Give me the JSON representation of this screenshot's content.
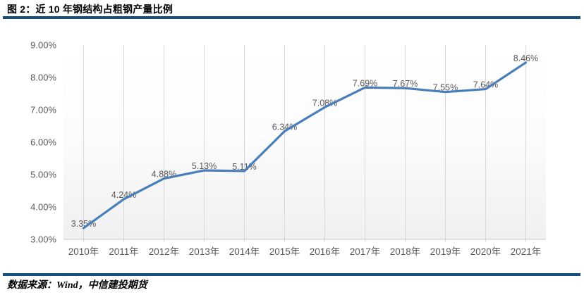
{
  "header": {
    "title": "图 2：近 10 年钢结构占粗钢产量比例"
  },
  "footer": {
    "source": "数据来源：Wind，中信建投期货"
  },
  "colors": {
    "divider": "#174E7C",
    "line_accent": "#4A7EBB",
    "axis_text": "#595959",
    "gridline": "#D9D9D9",
    "axis_line": "#C8C8C8",
    "plot_bg_top": "#FFFFFF",
    "plot_bg_bottom": "#F0F0F0"
  },
  "chart_data": {
    "type": "line",
    "title": "近10年钢结构占粗钢产量比例",
    "categories": [
      "2010年",
      "2011年",
      "2012年",
      "2013年",
      "2014年",
      "2015年",
      "2016年",
      "2017年",
      "2018年",
      "2019年",
      "2020年",
      "2021年"
    ],
    "values": [
      3.35,
      4.24,
      4.88,
      5.13,
      5.11,
      6.34,
      7.08,
      7.69,
      7.67,
      7.55,
      7.64,
      8.46
    ],
    "point_labels": [
      "3.35%",
      "4.24%",
      "4.88%",
      "5.13%",
      "5.11%",
      "6.34%",
      "7.08%",
      "7.69%",
      "7.67%",
      "7.55%",
      "7.64%",
      "8.46%"
    ],
    "yticks": [
      {
        "value": 9,
        "label": "9.00%"
      },
      {
        "value": 8,
        "label": "8.00%"
      },
      {
        "value": 7,
        "label": "7.00%"
      },
      {
        "value": 6,
        "label": "6.00%"
      },
      {
        "value": 5,
        "label": "5.00%"
      },
      {
        "value": 4,
        "label": "4.00%"
      },
      {
        "value": 3,
        "label": "3.00%"
      }
    ],
    "ylim": [
      3,
      9
    ],
    "xlabel": "",
    "ylabel": "",
    "grid": "vertical-only",
    "legend": "none"
  }
}
